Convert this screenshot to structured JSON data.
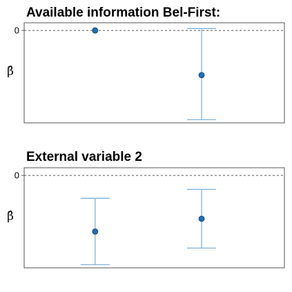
{
  "chart_data": [
    {
      "type": "scatter",
      "title": "Available information Bel-First:",
      "ylabel": "β̂",
      "yticks": [
        {
          "value": 0,
          "label": "0"
        }
      ],
      "ylim": [
        -1.45,
        0.12
      ],
      "xlim": [
        0,
        2.2
      ],
      "reference_line": 0,
      "points": [
        {
          "x": 0.6,
          "y": 0,
          "lower": null,
          "upper": null
        },
        {
          "x": 1.5,
          "y": -0.7,
          "lower": -1.4,
          "upper": 0.03
        }
      ]
    },
    {
      "type": "scatter",
      "title": "External variable 2",
      "ylabel": "β̂",
      "yticks": [
        {
          "value": 0,
          "label": "0"
        }
      ],
      "ylim": [
        -1.45,
        0.12
      ],
      "xlim": [
        0,
        2.2
      ],
      "reference_line": 0,
      "points": [
        {
          "x": 0.6,
          "y": -0.88,
          "lower": -1.4,
          "upper": -0.36
        },
        {
          "x": 1.5,
          "y": -0.68,
          "lower": -1.14,
          "upper": -0.22
        }
      ]
    }
  ],
  "colors": {
    "point_fill": "#1f6fb5",
    "point_stroke": "#0d3d6e",
    "errorbar": "#7fb3d9",
    "frame": "#555555",
    "refline": "#555555"
  }
}
